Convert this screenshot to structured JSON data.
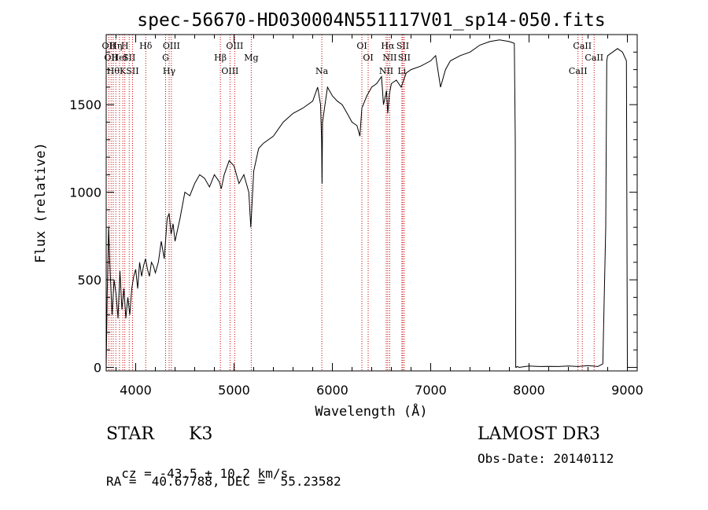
{
  "chart_data": {
    "type": "line",
    "title": "spec-56670-HD030004N551117V01_sp14-050.fits",
    "xlabel": "Wavelength (Å)",
    "ylabel": "Flux (relative)",
    "xlim": [
      3700,
      9100
    ],
    "ylim": [
      -20,
      1900
    ],
    "xticks": [
      4000,
      5000,
      6000,
      7000,
      8000,
      9000
    ],
    "yticks": [
      0,
      500,
      1000,
      1500
    ],
    "grid": false,
    "line_color": "#000000",
    "marker_line_color": "#cc0000",
    "series": [
      {
        "x": [
          3700,
          3710,
          3725,
          3740,
          3760,
          3780,
          3800,
          3820,
          3840,
          3860,
          3880,
          3900,
          3920,
          3940,
          3960,
          3980,
          4000,
          4020,
          4040,
          4060,
          4080,
          4100,
          4120,
          4140,
          4160,
          4180,
          4200,
          4230,
          4260,
          4290,
          4320,
          4340,
          4360,
          4380,
          4400,
          4450,
          4500,
          4550,
          4600,
          4650,
          4700,
          4750,
          4800,
          4850,
          4870,
          4900,
          4950,
          5000,
          5050,
          5100,
          5150,
          5170,
          5180,
          5200,
          5250,
          5300,
          5400,
          5500,
          5600,
          5700,
          5800,
          5850,
          5880,
          5890,
          5895,
          5900,
          5920,
          5950,
          6000,
          6050,
          6100,
          6150,
          6200,
          6250,
          6280,
          6300,
          6350,
          6400,
          6450,
          6500,
          6520,
          6550,
          6563,
          6580,
          6600,
          6650,
          6700,
          6750,
          6800,
          6900,
          7000,
          7050,
          7100,
          7150,
          7200,
          7300,
          7400,
          7500,
          7600,
          7700,
          7800,
          7850,
          7860,
          7865,
          7870,
          7880,
          7900,
          8000,
          8100,
          8200,
          8300,
          8400,
          8500,
          8600,
          8700,
          8750,
          8780,
          8790,
          8800,
          8850,
          8900,
          8950,
          8990,
          9000,
          9020
        ],
        "y": [
          0,
          420,
          800,
          550,
          300,
          500,
          420,
          280,
          550,
          330,
          450,
          280,
          400,
          300,
          450,
          520,
          560,
          450,
          600,
          520,
          580,
          620,
          560,
          520,
          600,
          580,
          540,
          600,
          720,
          620,
          850,
          880,
          760,
          820,
          720,
          850,
          1000,
          980,
          1050,
          1100,
          1080,
          1030,
          1100,
          1060,
          1020,
          1100,
          1180,
          1150,
          1050,
          1100,
          1000,
          800,
          900,
          1120,
          1250,
          1280,
          1320,
          1400,
          1450,
          1480,
          1520,
          1600,
          1500,
          1300,
          1050,
          1400,
          1480,
          1600,
          1550,
          1520,
          1500,
          1450,
          1400,
          1380,
          1320,
          1480,
          1550,
          1600,
          1620,
          1660,
          1500,
          1580,
          1450,
          1560,
          1620,
          1640,
          1600,
          1680,
          1700,
          1720,
          1750,
          1780,
          1600,
          1700,
          1750,
          1780,
          1800,
          1840,
          1860,
          1870,
          1860,
          1850,
          1300,
          0,
          0,
          5,
          0,
          8,
          5,
          6,
          5,
          8,
          5,
          10,
          5,
          20,
          800,
          1750,
          1780,
          1800,
          1820,
          1800,
          1750,
          0,
          0
        ]
      }
    ],
    "line_markers": [
      {
        "wavelength": 3727,
        "label": "OII"
      },
      {
        "wavelength": 3750,
        "label": "OII"
      },
      {
        "wavelength": 3771,
        "label": "Hθ"
      },
      {
        "wavelength": 3798,
        "label": "Hη"
      },
      {
        "wavelength": 3835,
        "label": "HeI"
      },
      {
        "wavelength": 3869,
        "label": "K"
      },
      {
        "wavelength": 3889,
        "label": "H"
      },
      {
        "wavelength": 3934,
        "label": "SII"
      },
      {
        "wavelength": 3968,
        "label": "SII"
      },
      {
        "wavelength": 4102,
        "label": "Hδ"
      },
      {
        "wavelength": 4304,
        "label": "G"
      },
      {
        "wavelength": 4340,
        "label": "Hγ"
      },
      {
        "wavelength": 4363,
        "label": "OIII"
      },
      {
        "wavelength": 4861,
        "label": "Hβ"
      },
      {
        "wavelength": 4959,
        "label": "OIII"
      },
      {
        "wavelength": 5007,
        "label": "OIII"
      },
      {
        "wavelength": 5175,
        "label": "Mg"
      },
      {
        "wavelength": 5893,
        "label": "Na"
      },
      {
        "wavelength": 6300,
        "label": "OI"
      },
      {
        "wavelength": 6364,
        "label": "OI"
      },
      {
        "wavelength": 6548,
        "label": "NII"
      },
      {
        "wavelength": 6563,
        "label": "Hα"
      },
      {
        "wavelength": 6583,
        "label": "NII"
      },
      {
        "wavelength": 6707,
        "label": "Li"
      },
      {
        "wavelength": 6716,
        "label": "SII"
      },
      {
        "wavelength": 6731,
        "label": "SII"
      },
      {
        "wavelength": 8498,
        "label": "CaII"
      },
      {
        "wavelength": 8542,
        "label": "CaII"
      },
      {
        "wavelength": 8662,
        "label": "CaII"
      }
    ]
  },
  "info": {
    "object_class": "STAR",
    "subclass": "K3",
    "cz_label": "cz =",
    "cz_value": "-43.5 ± 10.2 km/s",
    "coords": "RA =  40.67788, DEC =  55.23582",
    "survey": "LAMOST DR3",
    "obs_date": "Obs-Date: 20140112"
  }
}
